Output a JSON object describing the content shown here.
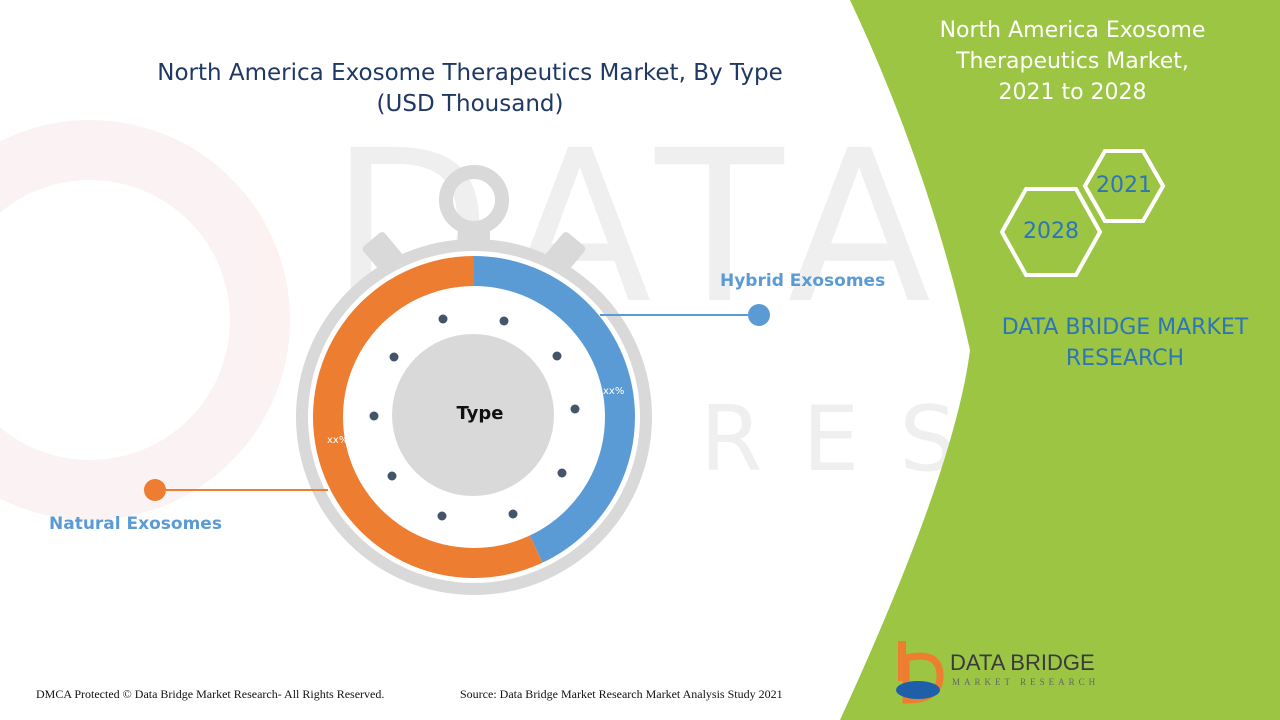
{
  "title_line1": "North America Exosome Therapeutics Market, By Type",
  "title_line2": "(USD Thousand)",
  "side_panel": {
    "title_line1": "North America Exosome",
    "title_line2": "Therapeutics Market,",
    "title_line3": "2021 to 2028",
    "year_a": "2021",
    "year_b": "2028",
    "brand_line1": "DATA BRIDGE MARKET",
    "brand_line2": "RESEARCH"
  },
  "chart_data": {
    "type": "pie",
    "title": "North America Exosome Therapeutics Market, By Type (USD Thousand)",
    "center_label": "Type",
    "categories": [
      "Hybrid Exosomes",
      "Natural Exosomes"
    ],
    "values": [
      0.43,
      0.57
    ],
    "data_labels": [
      "xx%",
      "xx%"
    ],
    "colors": [
      "#5b9bd5",
      "#ed7d31"
    ]
  },
  "footer": {
    "dmca": "DMCA Protected © Data Bridge Market Research- All Rights Reserved.",
    "source": "Source: Data Bridge Market Research Market Analysis Study 2021"
  },
  "logo": {
    "name": "DATA BRIDGE",
    "sub": "MARKET RESEARCH"
  },
  "watermark": "DATA BRIDGE",
  "colors": {
    "accent_green": "#9cc544",
    "hybrid": "#5b9bd5",
    "natural": "#ed7d31",
    "title": "#1f3864"
  }
}
